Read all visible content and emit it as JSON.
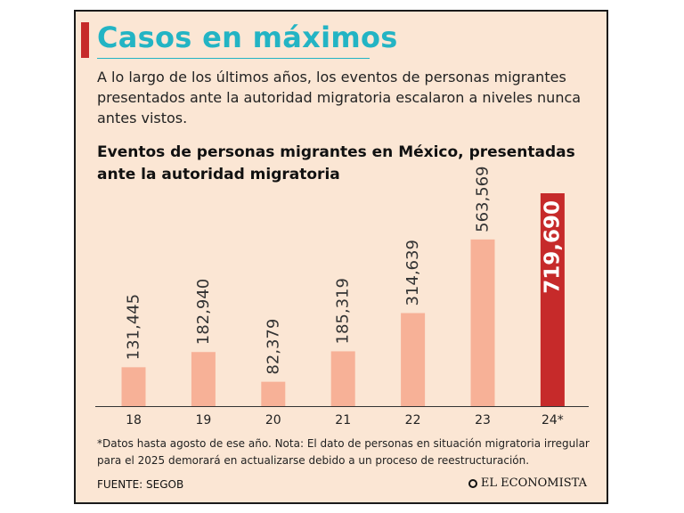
{
  "headline": "Casos en máximos",
  "subtitle": "A lo largo de los últimos años, los eventos de personas migrantes presentados ante la autoridad migratoria escalaron a niveles nunca antes vistos.",
  "footnote": "*Datos hasta agosto de ese año. Nota: El dato de personas en situación migratoria irregular para el 2025 demorará en actualizarse debido a un proceso de reestructuración.",
  "source": "FUENTE: SEGOB",
  "brand": "EL ECONOMISTA",
  "brand_icon": "circle-logo-icon",
  "colors": {
    "accent": "#c62a2a",
    "title": "#23b4c4",
    "bar": "#f7b197",
    "highlight": "#c62a2a",
    "background": "#fbe6d4"
  },
  "chart_data": {
    "type": "bar",
    "title": "Eventos de personas migrantes en México, presentadas ante la autoridad migratoria",
    "categories": [
      "18",
      "19",
      "20",
      "21",
      "22",
      "23",
      "24*"
    ],
    "values": [
      131445,
      182940,
      82379,
      185319,
      314639,
      563569,
      719690
    ],
    "value_labels": [
      "131,445",
      "182,940",
      "82,379",
      "185,319",
      "314,639",
      "563,569",
      "719,690"
    ],
    "highlight_index": 6,
    "ylim": [
      0,
      719690
    ],
    "grid": false,
    "legend": "none",
    "xlabel": "",
    "ylabel": ""
  }
}
